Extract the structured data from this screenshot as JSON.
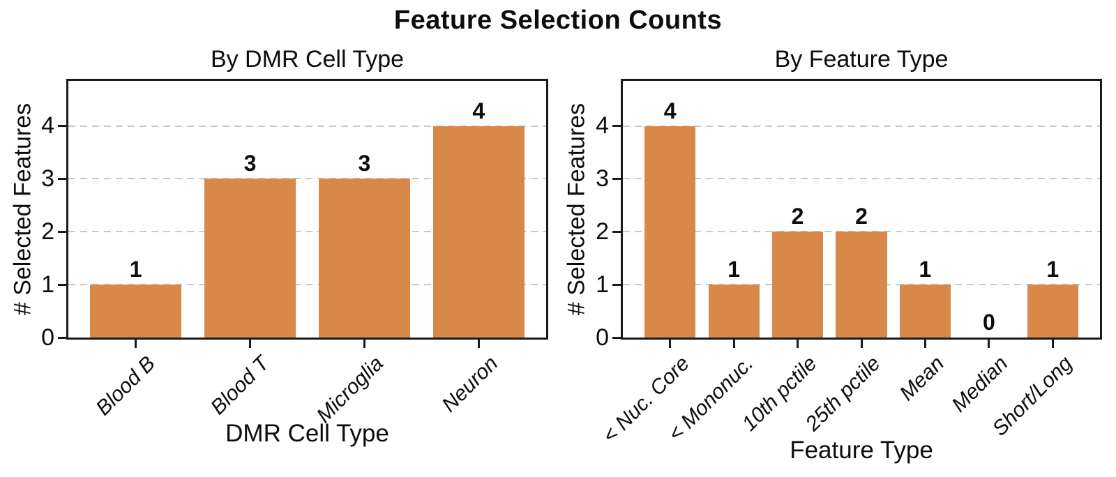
{
  "figure": {
    "title": "Feature Selection Counts"
  },
  "colors": {
    "bar": "#d8894a",
    "grid": "#c9c9c9",
    "axis": "#1a1a1a",
    "background": "#ffffff",
    "text": "#0d0d0d"
  },
  "chart_data": [
    {
      "type": "bar",
      "title": "By DMR Cell Type",
      "xlabel": "DMR Cell Type",
      "ylabel": "# Selected Features",
      "categories": [
        "Blood B",
        "Blood T",
        "Microglia",
        "Neuron"
      ],
      "values": [
        1,
        3,
        3,
        4
      ],
      "yticks": [
        0,
        1,
        2,
        3,
        4
      ],
      "ylim": [
        0,
        4.85
      ],
      "grid": "horizontal-dashed",
      "legend": "none",
      "bar_color": "#d8894a",
      "xtick_style": "italic, rotated 45deg"
    },
    {
      "type": "bar",
      "title": "By Feature Type",
      "xlabel": "Feature Type",
      "ylabel": "# Selected Features",
      "categories": [
        "< Nuc. Core",
        "< Mononuc.",
        "10th pctile",
        "25th pctile",
        "Mean",
        "Median",
        "Short/Long"
      ],
      "values": [
        4,
        1,
        2,
        2,
        1,
        0,
        1
      ],
      "yticks": [
        0,
        1,
        2,
        3,
        4
      ],
      "ylim": [
        0,
        4.85
      ],
      "grid": "horizontal-dashed",
      "legend": "none",
      "bar_color": "#d8894a",
      "xtick_style": "italic, rotated 45deg"
    }
  ]
}
